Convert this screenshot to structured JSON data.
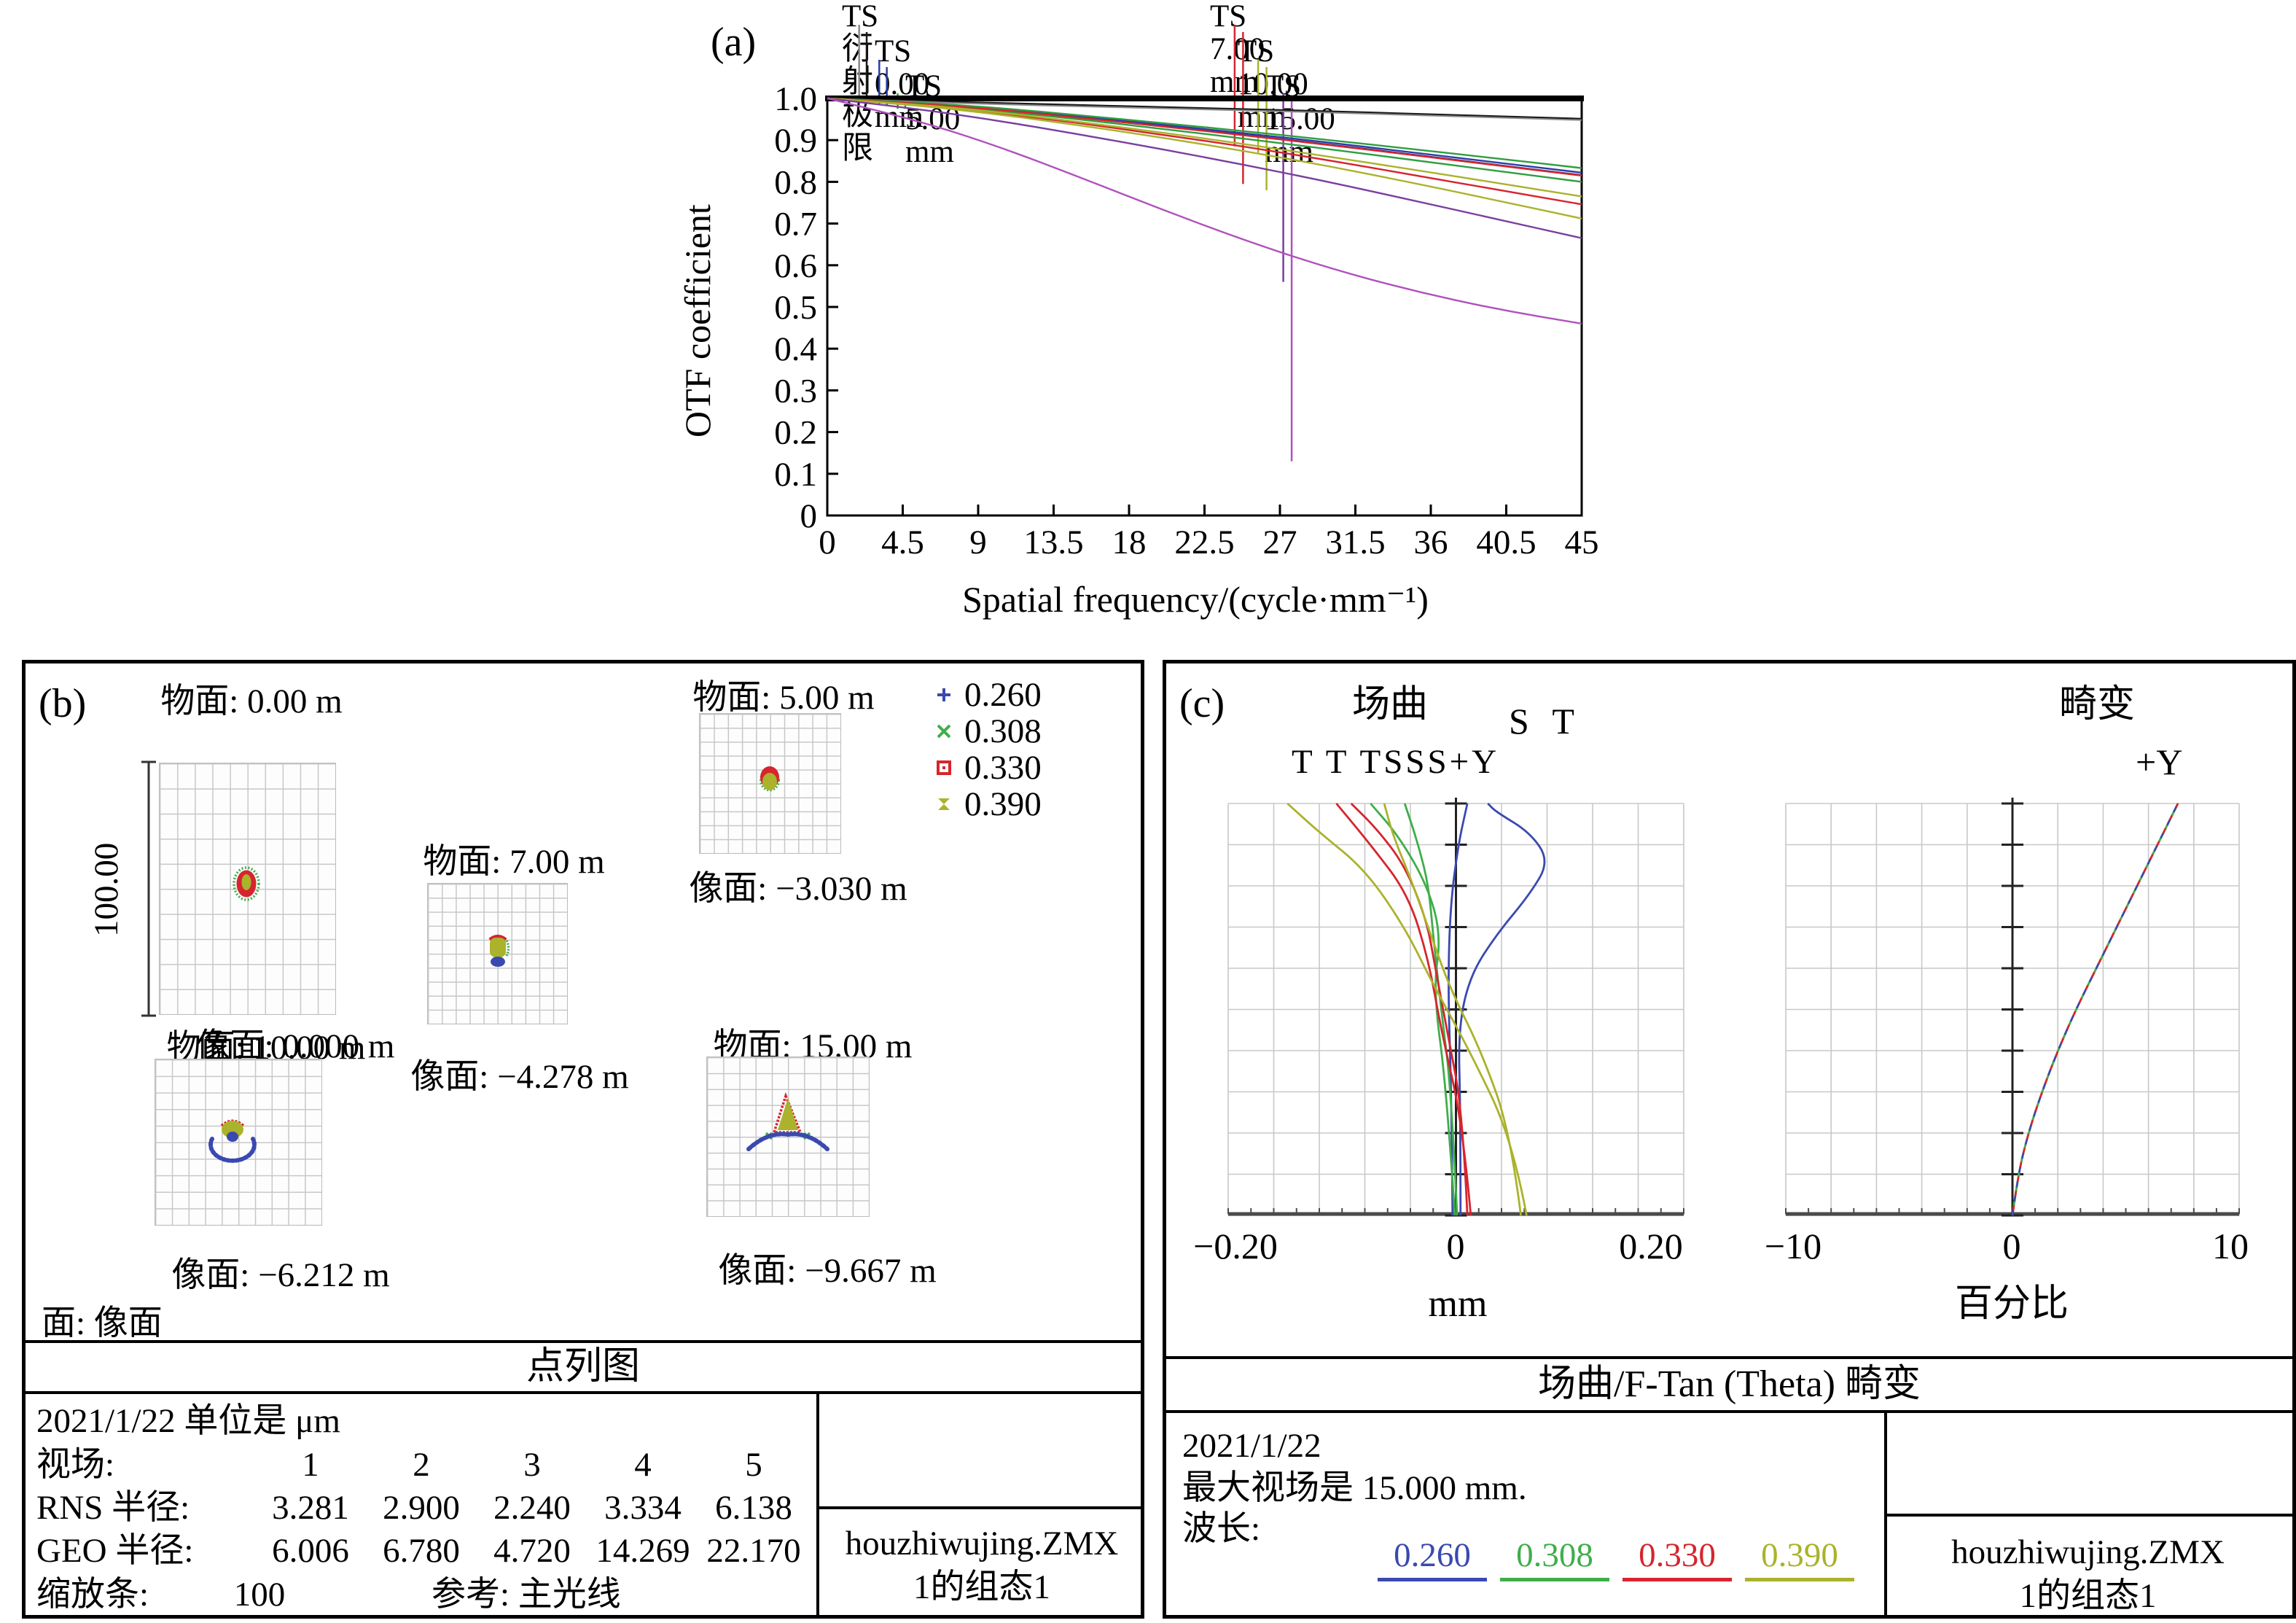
{
  "wavelengths": [
    {
      "value": "0.260",
      "color": "#3a49b0"
    },
    {
      "value": "0.308",
      "color": "#3fae4a"
    },
    {
      "value": "0.330",
      "color": "#d6252e"
    },
    {
      "value": "0.390",
      "color": "#aab32b"
    }
  ],
  "panel_a": {
    "label": "(a)",
    "legend_left": [
      "TS 衍射极限",
      "TS 0.00 mm",
      "TS 5.00 mm"
    ],
    "legend_right": [
      "TS 7.00 mm",
      "TS 10.00 mm",
      "TS 15.00 mm"
    ],
    "ylabel": "OTF coefficient",
    "xlabel": "Spatial frequency/(cycle·mm⁻¹)"
  },
  "panel_b": {
    "label": "(b)",
    "scale_bar": "100.00",
    "surface_note": "面: 像面",
    "section_title": "点列图",
    "spots": [
      {
        "object_plane": "物面: 0.00 m",
        "image_plane": "像面: 0.000 m"
      },
      {
        "object_plane": "物面: 5.00 m",
        "image_plane": "像面: −3.030 m"
      },
      {
        "object_plane": "物面: 7.00 m",
        "image_plane": "像面: −4.278 m"
      },
      {
        "object_plane": "物面: 10.00 m",
        "image_plane": "像面: −6.212 m"
      },
      {
        "object_plane": "物面: 15.00 m",
        "image_plane": "像面: −9.667 m"
      }
    ],
    "info": {
      "date_units": "2021/1/22 单位是 μm",
      "field_label": "视场:",
      "fields": [
        "1",
        "2",
        "3",
        "4",
        "5"
      ],
      "rms_label": "RNS 半径:",
      "rms": [
        "3.281",
        "2.900",
        "2.240",
        "3.334",
        "6.138"
      ],
      "geo_label": "GEO 半径:",
      "geo": [
        "6.006",
        "6.780",
        "4.720",
        "14.269",
        "22.170"
      ],
      "zoom_label": "缩放条:",
      "zoom_value": "100",
      "ref": "参考: 主光线",
      "file": "houzhiwujing.ZMX",
      "config": "1的组态1"
    }
  },
  "panel_c": {
    "label": "(c)",
    "fc_title": "场曲",
    "fc_st": "S T",
    "fc_curve_labels": "T T TSSS+Y",
    "fc_xticks": [
      "−0.20",
      "0",
      "0.20"
    ],
    "fc_xlabel": "mm",
    "dist_title": "畸变",
    "dist_axis": "+Y",
    "dist_xticks": [
      "−10",
      "0",
      "10"
    ],
    "dist_xlabel": "百分比",
    "section_title": "场曲/F-Tan (Theta) 畸变",
    "info": {
      "date": "2021/1/22",
      "max_field": "最大视场是 15.000 mm.",
      "wl_label": "波长:",
      "file": "houzhiwujing.ZMX",
      "config": "1的组态1"
    }
  },
  "chart_data": [
    {
      "id": "mtf",
      "type": "line",
      "title": "MTF (OTF coefficient vs spatial frequency)",
      "xlabel": "Spatial frequency/(cycle·mm⁻¹)",
      "ylabel": "OTF coefficient",
      "xlim": [
        0,
        45
      ],
      "ylim": [
        0,
        1
      ],
      "xticks": [
        0,
        4.5,
        9,
        13.5,
        18,
        22.5,
        27,
        31.5,
        36,
        40.5,
        45
      ],
      "yticks": [
        0,
        0.1,
        0.2,
        0.3,
        0.4,
        0.5,
        0.6,
        0.7,
        0.8,
        0.9,
        1.0
      ],
      "ytick_labels": [
        "0",
        "0.1",
        "0.2",
        "0.3",
        "0.4",
        "0.5",
        "0.6",
        "0.7",
        "0.8",
        "0.9",
        "1.0"
      ],
      "grid": false,
      "x": [
        0,
        5,
        10,
        15,
        20,
        25,
        30,
        35,
        40,
        45
      ],
      "series": [
        {
          "name": "TS 衍射极限",
          "color": "#1a1a1a",
          "width": 2.6,
          "values": [
            1.0,
            0.994,
            0.989,
            0.984,
            0.979,
            0.974,
            0.969,
            0.963,
            0.957,
            0.951
          ]
        },
        {
          "name": "TS 衍射极限 (S)",
          "color": "#8a8a8a",
          "width": 2.0,
          "values": [
            1.0,
            0.992,
            0.986,
            0.981,
            0.976,
            0.971,
            0.966,
            0.96,
            0.954,
            0.948
          ]
        },
        {
          "name": "TS 0.00 mm T",
          "color": "#2c3ea8",
          "width": 2.4,
          "values": [
            1.0,
            0.99,
            0.976,
            0.957,
            0.937,
            0.916,
            0.894,
            0.87,
            0.846,
            0.822
          ]
        },
        {
          "name": "TS 0.00 mm S",
          "color": "#1d2a7a",
          "width": 2.4,
          "values": [
            1.0,
            0.989,
            0.974,
            0.954,
            0.933,
            0.912,
            0.889,
            0.865,
            0.84,
            0.816
          ]
        },
        {
          "name": "TS 5.00 mm S",
          "color": "#2f9e3f",
          "width": 2.4,
          "values": [
            1.0,
            0.991,
            0.978,
            0.96,
            0.941,
            0.921,
            0.9,
            0.878,
            0.856,
            0.833
          ]
        },
        {
          "name": "TS 5.00 mm T",
          "color": "#2f9e3f",
          "width": 2.4,
          "values": [
            1.0,
            0.988,
            0.971,
            0.95,
            0.927,
            0.903,
            0.878,
            0.852,
            0.826,
            0.8
          ]
        },
        {
          "name": "TS 7.00 mm S",
          "color": "#d6252e",
          "width": 2.4,
          "values": [
            1.0,
            0.989,
            0.974,
            0.954,
            0.933,
            0.911,
            0.888,
            0.864,
            0.839,
            0.815
          ]
        },
        {
          "name": "TS 7.00 mm T",
          "color": "#d6252e",
          "width": 2.4,
          "values": [
            1.0,
            0.986,
            0.966,
            0.941,
            0.913,
            0.884,
            0.851,
            0.816,
            0.781,
            0.746
          ]
        },
        {
          "name": "TS 10.00 mm S",
          "color": "#aab32b",
          "width": 2.4,
          "values": [
            1.0,
            0.987,
            0.968,
            0.944,
            0.918,
            0.89,
            0.86,
            0.829,
            0.797,
            0.765
          ]
        },
        {
          "name": "TS 10.00 mm T",
          "color": "#aab32b",
          "width": 2.4,
          "values": [
            1.0,
            0.985,
            0.963,
            0.936,
            0.906,
            0.873,
            0.837,
            0.797,
            0.755,
            0.712
          ]
        },
        {
          "name": "TS 15.00 mm S",
          "color": "#7a3f9e",
          "width": 2.4,
          "values": [
            1.0,
            0.977,
            0.948,
            0.914,
            0.878,
            0.84,
            0.799,
            0.755,
            0.71,
            0.665
          ]
        },
        {
          "name": "TS 15.00 mm T",
          "color": "#b052bc",
          "width": 2.4,
          "values": [
            1.0,
            0.952,
            0.888,
            0.812,
            0.733,
            0.658,
            0.592,
            0.538,
            0.494,
            0.46
          ]
        }
      ],
      "callout_lines": [
        {
          "x": 1.9,
          "top": 34,
          "bottom": 0.99,
          "color": "#8a8a8a"
        },
        {
          "x": 2.35,
          "top": 44,
          "bottom": 0.99,
          "color": "#1a1a1a"
        },
        {
          "x": 3.1,
          "top": 82,
          "bottom": 0.985,
          "color": "#2c3ea8"
        },
        {
          "x": 3.55,
          "top": 92,
          "bottom": 0.985,
          "color": "#2c3ea8"
        },
        {
          "x": 4.2,
          "top": 128,
          "bottom": 0.975,
          "color": "#2f9e3f"
        },
        {
          "x": 4.65,
          "top": 138,
          "bottom": 0.975,
          "color": "#2f9e3f"
        },
        {
          "x": 24.3,
          "top": 34,
          "bottom": 0.885,
          "color": "#d6252e"
        },
        {
          "x": 24.8,
          "top": 44,
          "bottom": 0.795,
          "color": "#d6252e"
        },
        {
          "x": 25.7,
          "top": 82,
          "bottom": 0.87,
          "color": "#aab32b"
        },
        {
          "x": 26.2,
          "top": 92,
          "bottom": 0.78,
          "color": "#aab32b"
        },
        {
          "x": 27.2,
          "top": 128,
          "bottom": 0.56,
          "color": "#7a3f9e"
        },
        {
          "x": 27.7,
          "top": 138,
          "bottom": 0.13,
          "color": "#b052bc"
        }
      ]
    },
    {
      "id": "fc",
      "type": "line",
      "title": "场曲 (field curvature)",
      "xlabel": "mm",
      "xlim": [
        -0.2,
        0.2
      ],
      "xtick_labels": [
        "−0.20",
        "0",
        "0.20"
      ],
      "note": "y axis = field height 0 (bottom) to 15 mm (top), points are [sag_mm, field_fraction]",
      "series": [
        {
          "name": "S 0.260",
          "color": "#3a49b0",
          "points": [
            [
              0.004,
              0
            ],
            [
              0.004,
              0.25
            ],
            [
              0.002,
              0.45
            ],
            [
              0.012,
              0.58
            ],
            [
              0.035,
              0.68
            ],
            [
              0.065,
              0.78
            ],
            [
              0.082,
              0.86
            ],
            [
              0.065,
              0.93
            ],
            [
              0.035,
              0.98
            ],
            [
              0.028,
              1.0
            ]
          ]
        },
        {
          "name": "T 0.260",
          "color": "#3a49b0",
          "points": [
            [
              -0.003,
              0
            ],
            [
              -0.004,
              0.3
            ],
            [
              -0.007,
              0.55
            ],
            [
              -0.005,
              0.75
            ],
            [
              0.002,
              0.9
            ],
            [
              0.01,
              1.0
            ]
          ]
        },
        {
          "name": "S 0.308",
          "color": "#3fae4a",
          "points": [
            [
              0.001,
              0
            ],
            [
              -0.004,
              0.3
            ],
            [
              -0.013,
              0.5
            ],
            [
              -0.02,
              0.68
            ],
            [
              -0.024,
              0.8
            ],
            [
              -0.033,
              0.9
            ],
            [
              -0.045,
              1.0
            ]
          ]
        },
        {
          "name": "T 0.308",
          "color": "#3fae4a",
          "points": [
            [
              -0.001,
              0
            ],
            [
              -0.008,
              0.3
            ],
            [
              -0.02,
              0.55
            ],
            [
              -0.013,
              0.68
            ],
            [
              -0.025,
              0.8
            ],
            [
              -0.05,
              0.92
            ],
            [
              -0.075,
              1.0
            ]
          ]
        },
        {
          "name": "S 0.330",
          "color": "#d6252e",
          "points": [
            [
              0.01,
              0
            ],
            [
              0.006,
              0.25
            ],
            [
              -0.008,
              0.45
            ],
            [
              -0.018,
              0.6
            ],
            [
              -0.026,
              0.72
            ],
            [
              -0.045,
              0.85
            ],
            [
              -0.07,
              0.94
            ],
            [
              -0.092,
              1.0
            ]
          ]
        },
        {
          "name": "T 0.330",
          "color": "#d6252e",
          "points": [
            [
              0.013,
              0
            ],
            [
              0.006,
              0.22
            ],
            [
              -0.013,
              0.45
            ],
            [
              -0.024,
              0.62
            ],
            [
              -0.042,
              0.78
            ],
            [
              -0.075,
              0.9
            ],
            [
              -0.105,
              1.0
            ]
          ]
        },
        {
          "name": "S 0.390",
          "color": "#aab32b",
          "points": [
            [
              0.057,
              0
            ],
            [
              0.048,
              0.2
            ],
            [
              0.022,
              0.4
            ],
            [
              -0.005,
              0.55
            ],
            [
              -0.022,
              0.68
            ],
            [
              -0.04,
              0.82
            ],
            [
              -0.055,
              0.92
            ],
            [
              -0.063,
              1.0
            ]
          ]
        },
        {
          "name": "T 0.390",
          "color": "#aab32b",
          "points": [
            [
              0.062,
              0
            ],
            [
              0.05,
              0.18
            ],
            [
              0.012,
              0.4
            ],
            [
              -0.02,
              0.56
            ],
            [
              -0.045,
              0.7
            ],
            [
              -0.08,
              0.84
            ],
            [
              -0.12,
              0.93
            ],
            [
              -0.148,
              1.0
            ]
          ]
        }
      ]
    },
    {
      "id": "dist",
      "type": "line",
      "title": "畸变 (F-Tan(Theta) distortion)",
      "xlabel": "百分比",
      "xlim": [
        -10,
        10
      ],
      "xtick_labels": [
        "−10",
        "0",
        "10"
      ],
      "max_distortion_percent": 7.3,
      "overlap_dash": true,
      "note": "all four wavelength curves overlap; points are [distortion_percent, field_fraction]",
      "series": [
        {
          "name": "0.390",
          "color": "#aab32b",
          "points": [
            [
              0,
              0
            ],
            [
              0.25,
              0.1
            ],
            [
              0.7,
              0.2
            ],
            [
              1.3,
              0.3
            ],
            [
              2.0,
              0.4
            ],
            [
              2.8,
              0.5
            ],
            [
              3.7,
              0.6
            ],
            [
              4.6,
              0.7
            ],
            [
              5.5,
              0.8
            ],
            [
              6.4,
              0.9
            ],
            [
              7.3,
              1.0
            ]
          ]
        },
        {
          "name": "0.308",
          "color": "#3fae4a",
          "points": [
            [
              0,
              0
            ],
            [
              0.25,
              0.1
            ],
            [
              0.7,
              0.2
            ],
            [
              1.3,
              0.3
            ],
            [
              2.0,
              0.4
            ],
            [
              2.8,
              0.5
            ],
            [
              3.7,
              0.6
            ],
            [
              4.6,
              0.7
            ],
            [
              5.5,
              0.8
            ],
            [
              6.4,
              0.9
            ],
            [
              7.3,
              1.0
            ]
          ]
        },
        {
          "name": "0.330",
          "color": "#d6252e",
          "points": [
            [
              0,
              0
            ],
            [
              0.25,
              0.1
            ],
            [
              0.7,
              0.2
            ],
            [
              1.3,
              0.3
            ],
            [
              2.0,
              0.4
            ],
            [
              2.8,
              0.5
            ],
            [
              3.7,
              0.6
            ],
            [
              4.6,
              0.7
            ],
            [
              5.5,
              0.8
            ],
            [
              6.4,
              0.9
            ],
            [
              7.3,
              1.0
            ]
          ]
        },
        {
          "name": "0.260",
          "color": "#3a49b0",
          "points": [
            [
              0,
              0
            ],
            [
              0.25,
              0.1
            ],
            [
              0.7,
              0.2
            ],
            [
              1.3,
              0.3
            ],
            [
              2.0,
              0.4
            ],
            [
              2.8,
              0.5
            ],
            [
              3.7,
              0.6
            ],
            [
              4.6,
              0.7
            ],
            [
              5.5,
              0.8
            ],
            [
              6.4,
              0.9
            ],
            [
              7.3,
              1.0
            ]
          ]
        }
      ]
    },
    {
      "id": "spot_table",
      "type": "table",
      "title": "点列图 (spot diagram radii, μm)",
      "columns": [
        "视场",
        "1",
        "2",
        "3",
        "4",
        "5"
      ],
      "rows": [
        [
          "RNS 半径",
          3.281,
          2.9,
          2.24,
          3.334,
          6.138
        ],
        [
          "GEO 半径",
          6.006,
          6.78,
          4.72,
          14.269,
          22.17
        ]
      ]
    }
  ]
}
